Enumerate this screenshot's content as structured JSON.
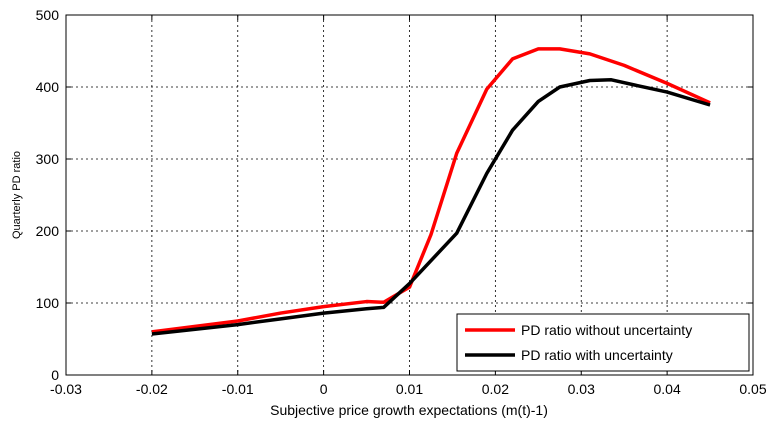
{
  "chart_data": {
    "type": "line",
    "title": "",
    "xlabel": "Subjective price growth expectations (m(t)-1)",
    "ylabel": "Quarterly PD ratio",
    "xlim": [
      -0.03,
      0.05
    ],
    "ylim": [
      0,
      500
    ],
    "xticks": [
      -0.03,
      -0.02,
      -0.01,
      0,
      0.01,
      0.02,
      0.03,
      0.04,
      0.05
    ],
    "xtick_labels": [
      "-0.03",
      "-0.02",
      "-0.01",
      "0",
      "0.01",
      "0.02",
      "0.03",
      "0.04",
      "0.05"
    ],
    "yticks": [
      0,
      100,
      200,
      300,
      400,
      500
    ],
    "ytick_labels": [
      "0",
      "100",
      "200",
      "300",
      "400",
      "500"
    ],
    "grid": true,
    "legend_position": "bottom-right",
    "series": [
      {
        "name": "PD ratio without uncertainty",
        "color": "#ff0000",
        "x": [
          -0.02,
          -0.01,
          -0.005,
          0,
          0.005,
          0.007,
          0.01,
          0.0125,
          0.0155,
          0.019,
          0.022,
          0.025,
          0.0275,
          0.031,
          0.035,
          0.04,
          0.045
        ],
        "y": [
          60,
          75,
          86,
          95,
          102,
          101,
          122,
          195,
          308,
          397,
          439,
          453,
          453,
          446,
          430,
          405,
          378
        ]
      },
      {
        "name": "PD ratio with uncertainty",
        "color": "#000000",
        "x": [
          -0.02,
          -0.01,
          -0.005,
          0,
          0.005,
          0.007,
          0.01,
          0.0155,
          0.019,
          0.022,
          0.025,
          0.0275,
          0.031,
          0.0335,
          0.0365,
          0.04,
          0.045
        ],
        "y": [
          57,
          70,
          78,
          86,
          92,
          94,
          127,
          197,
          280,
          340,
          380,
          400,
          409,
          410,
          402,
          393,
          375
        ]
      }
    ]
  }
}
